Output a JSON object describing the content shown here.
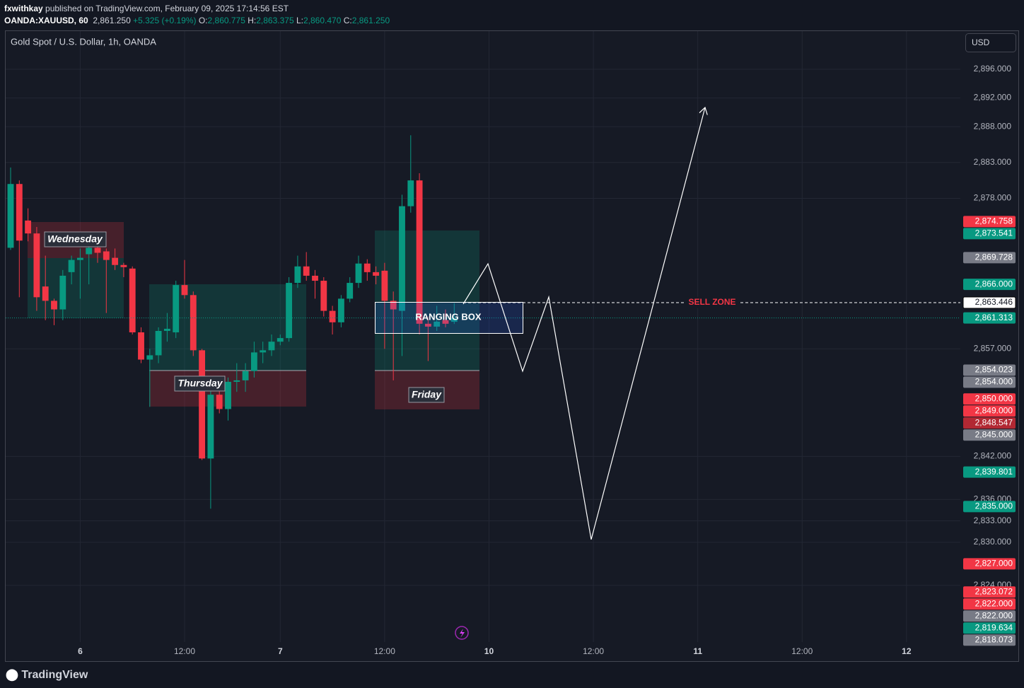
{
  "header": {
    "author": "fxwithkay",
    "published": "published on TradingView.com, February 09, 2025 17:14:56 EST",
    "symbol": "OANDA:XAUUSD, 60",
    "last": "2,861.250",
    "change": "+5.325 (+0.19%)",
    "o_label": "O:",
    "o": "2,860.775",
    "h_label": "H:",
    "h": "2,863.375",
    "l_label": "L:",
    "l": "2,860.470",
    "c_label": "C:",
    "c": "2,861.250"
  },
  "footer": {
    "brand": "TradingView"
  },
  "chart_data": {
    "type": "candlestick",
    "title": "Gold Spot / U.S. Dollar, 1h, OANDA",
    "currency": "USD",
    "up_color": "#089981",
    "down_color": "#f23645",
    "grid": true,
    "open": [
      2871.1,
      2880.0,
      2874.9,
      2873.1,
      2865.7,
      2863.7,
      2862.5,
      2867.7,
      2869.4,
      2870.2,
      2871.1,
      2870.6,
      2869.7,
      2868.7,
      2868.2,
      2859.3,
      2855.5,
      2856.1,
      2859.5,
      2859.3,
      2865.9,
      2864.5,
      2856.8,
      2841.7,
      2850.6,
      2848.6,
      2852.4,
      2852.6,
      2853.9,
      2856.5,
      2856.8,
      2858.0,
      2858.5,
      2866.2,
      2868.5,
      2867.2,
      2866.5,
      2862.3,
      2860.7,
      2864.0,
      2866.2,
      2868.9,
      2867.7,
      2867.9,
      2863.7,
      2862.3,
      2876.9,
      2880.5,
      2860.5,
      2860.1,
      2861.0,
      2860.775
    ],
    "high": [
      2882.3,
      2880.5,
      2876.6,
      2874.0,
      2870.0,
      2864.0,
      2868.0,
      2870.0,
      2871.0,
      2872.5,
      2872.0,
      2871.0,
      2871.0,
      2869.0,
      2868.5,
      2860.0,
      2857.0,
      2860.0,
      2862.0,
      2866.5,
      2869.4,
      2865.0,
      2857.0,
      2852.0,
      2852.0,
      2853.0,
      2855.0,
      2855.0,
      2858.0,
      2858.0,
      2859.0,
      2859.0,
      2867.0,
      2870.0,
      2870.5,
      2868.0,
      2867.0,
      2863.0,
      2864.5,
      2867.0,
      2870.0,
      2869.5,
      2868.5,
      2869.0,
      2865.0,
      2878.5,
      2886.8,
      2881.5,
      2861.5,
      2863.0,
      2862.5,
      2863.375
    ],
    "low": [
      2870.8,
      2864.2,
      2872.0,
      2862.3,
      2861.0,
      2860.3,
      2861.0,
      2866.0,
      2864.0,
      2866.0,
      2869.0,
      2862.0,
      2868.0,
      2867.0,
      2859.0,
      2855.0,
      2848.9,
      2855.0,
      2858.0,
      2858.5,
      2864.0,
      2856.0,
      2841.5,
      2834.7,
      2848.0,
      2847.0,
      2851.0,
      2851.0,
      2853.0,
      2855.0,
      2856.0,
      2857.5,
      2858.0,
      2865.5,
      2866.5,
      2864.0,
      2861.5,
      2859.0,
      2860.0,
      2863.5,
      2865.5,
      2866.5,
      2866.0,
      2857.0,
      2852.6,
      2856.0,
      2876.0,
      2859.0,
      2855.3,
      2859.5,
      2860.0,
      2860.47
    ],
    "close": [
      2880.0,
      2872.1,
      2873.1,
      2864.2,
      2863.7,
      2862.5,
      2867.2,
      2869.4,
      2869.7,
      2871.1,
      2870.4,
      2869.4,
      2868.7,
      2868.4,
      2859.3,
      2855.5,
      2856.1,
      2859.5,
      2859.8,
      2865.9,
      2864.5,
      2856.8,
      2841.7,
      2850.6,
      2848.6,
      2852.4,
      2852.6,
      2853.9,
      2856.5,
      2856.8,
      2858.0,
      2858.5,
      2866.2,
      2868.5,
      2867.2,
      2866.5,
      2862.3,
      2860.7,
      2864.0,
      2866.2,
      2868.9,
      2867.7,
      2867.2,
      2863.7,
      2862.5,
      2876.9,
      2880.5,
      2860.5,
      2860.1,
      2860.8,
      2860.5,
      2861.25
    ],
    "xlim": [
      -0.57,
      109.19
    ],
    "xticks": [
      {
        "value": 8,
        "label": "6"
      },
      {
        "value": 20,
        "label": "12:00"
      },
      {
        "value": 31,
        "label": "7"
      },
      {
        "value": 43,
        "label": "12:00"
      },
      {
        "value": 55,
        "label": "10"
      },
      {
        "value": 67,
        "label": "12:00"
      },
      {
        "value": 79,
        "label": "11"
      },
      {
        "value": 91,
        "label": "12:00"
      },
      {
        "value": 103,
        "label": "12"
      }
    ],
    "ylim": [
      2816.09,
      2901.33
    ],
    "yticks": [
      {
        "value": 2896,
        "label": "2,896.000"
      },
      {
        "value": 2892,
        "label": "2,892.000"
      },
      {
        "value": 2888,
        "label": "2,888.000"
      },
      {
        "value": 2883,
        "label": "2,883.000"
      },
      {
        "value": 2878,
        "label": "2,878.000"
      },
      {
        "value": 2857,
        "label": "2,857.000"
      },
      {
        "value": 2842,
        "label": "2,842.000"
      },
      {
        "value": 2836,
        "label": "2,836.000"
      },
      {
        "value": 2833,
        "label": "2,833.000"
      },
      {
        "value": 2830,
        "label": "2,830.000"
      },
      {
        "value": 2824,
        "label": "2,824.000"
      }
    ],
    "price_labels": [
      {
        "value": 2874.758,
        "label": "2,874.758",
        "color": "#f23645"
      },
      {
        "value": 2873.541,
        "label": "2,873.541",
        "color": "#089981"
      },
      {
        "value": 2869.728,
        "label": "2,869.728",
        "color": "#787b86"
      },
      {
        "value": 2866.0,
        "label": "2,866.000",
        "color": "#089981"
      },
      {
        "value": 2863.446,
        "label": "2,863.446",
        "color": "#ffffff"
      },
      {
        "value": 2861.313,
        "label": "2,861.313",
        "color": "#089981"
      },
      {
        "value": 2854.023,
        "label": "2,854.023",
        "color": "#787b86"
      },
      {
        "value": 2854.0,
        "label": "2,854.000",
        "color": "#787b86"
      },
      {
        "value": 2850.0,
        "label": "2,850.000",
        "color": "#f23645"
      },
      {
        "value": 2849.0,
        "label": "2,849.000",
        "color": "#f23645"
      },
      {
        "value": 2848.547,
        "label": "2,848.547",
        "color": "#b22833"
      },
      {
        "value": 2845.0,
        "label": "2,845.000",
        "color": "#787b86"
      },
      {
        "value": 2839.801,
        "label": "2,839.801",
        "color": "#089981"
      },
      {
        "value": 2835.0,
        "label": "2,835.000",
        "color": "#089981"
      },
      {
        "value": 2827.0,
        "label": "2,827.000",
        "color": "#f23645"
      },
      {
        "value": 2823.072,
        "label": "2,823.072",
        "color": "#f23645"
      },
      {
        "value": 2822.0,
        "label": "2,822.000",
        "color": "#f23645"
      },
      {
        "value": 2822.0,
        "label": "2,822.000",
        "color": "#787b86"
      },
      {
        "value": 2819.634,
        "label": "2,819.634",
        "color": "#089981"
      },
      {
        "value": 2818.073,
        "label": "2,818.073",
        "color": "#787b86"
      }
    ],
    "annotations": {
      "wednesday": "Wednesday",
      "thursday": "Thursday",
      "friday": "Friday",
      "ranging_box": "RANGING BOX",
      "sell_zone": "SELL ZONE"
    }
  }
}
